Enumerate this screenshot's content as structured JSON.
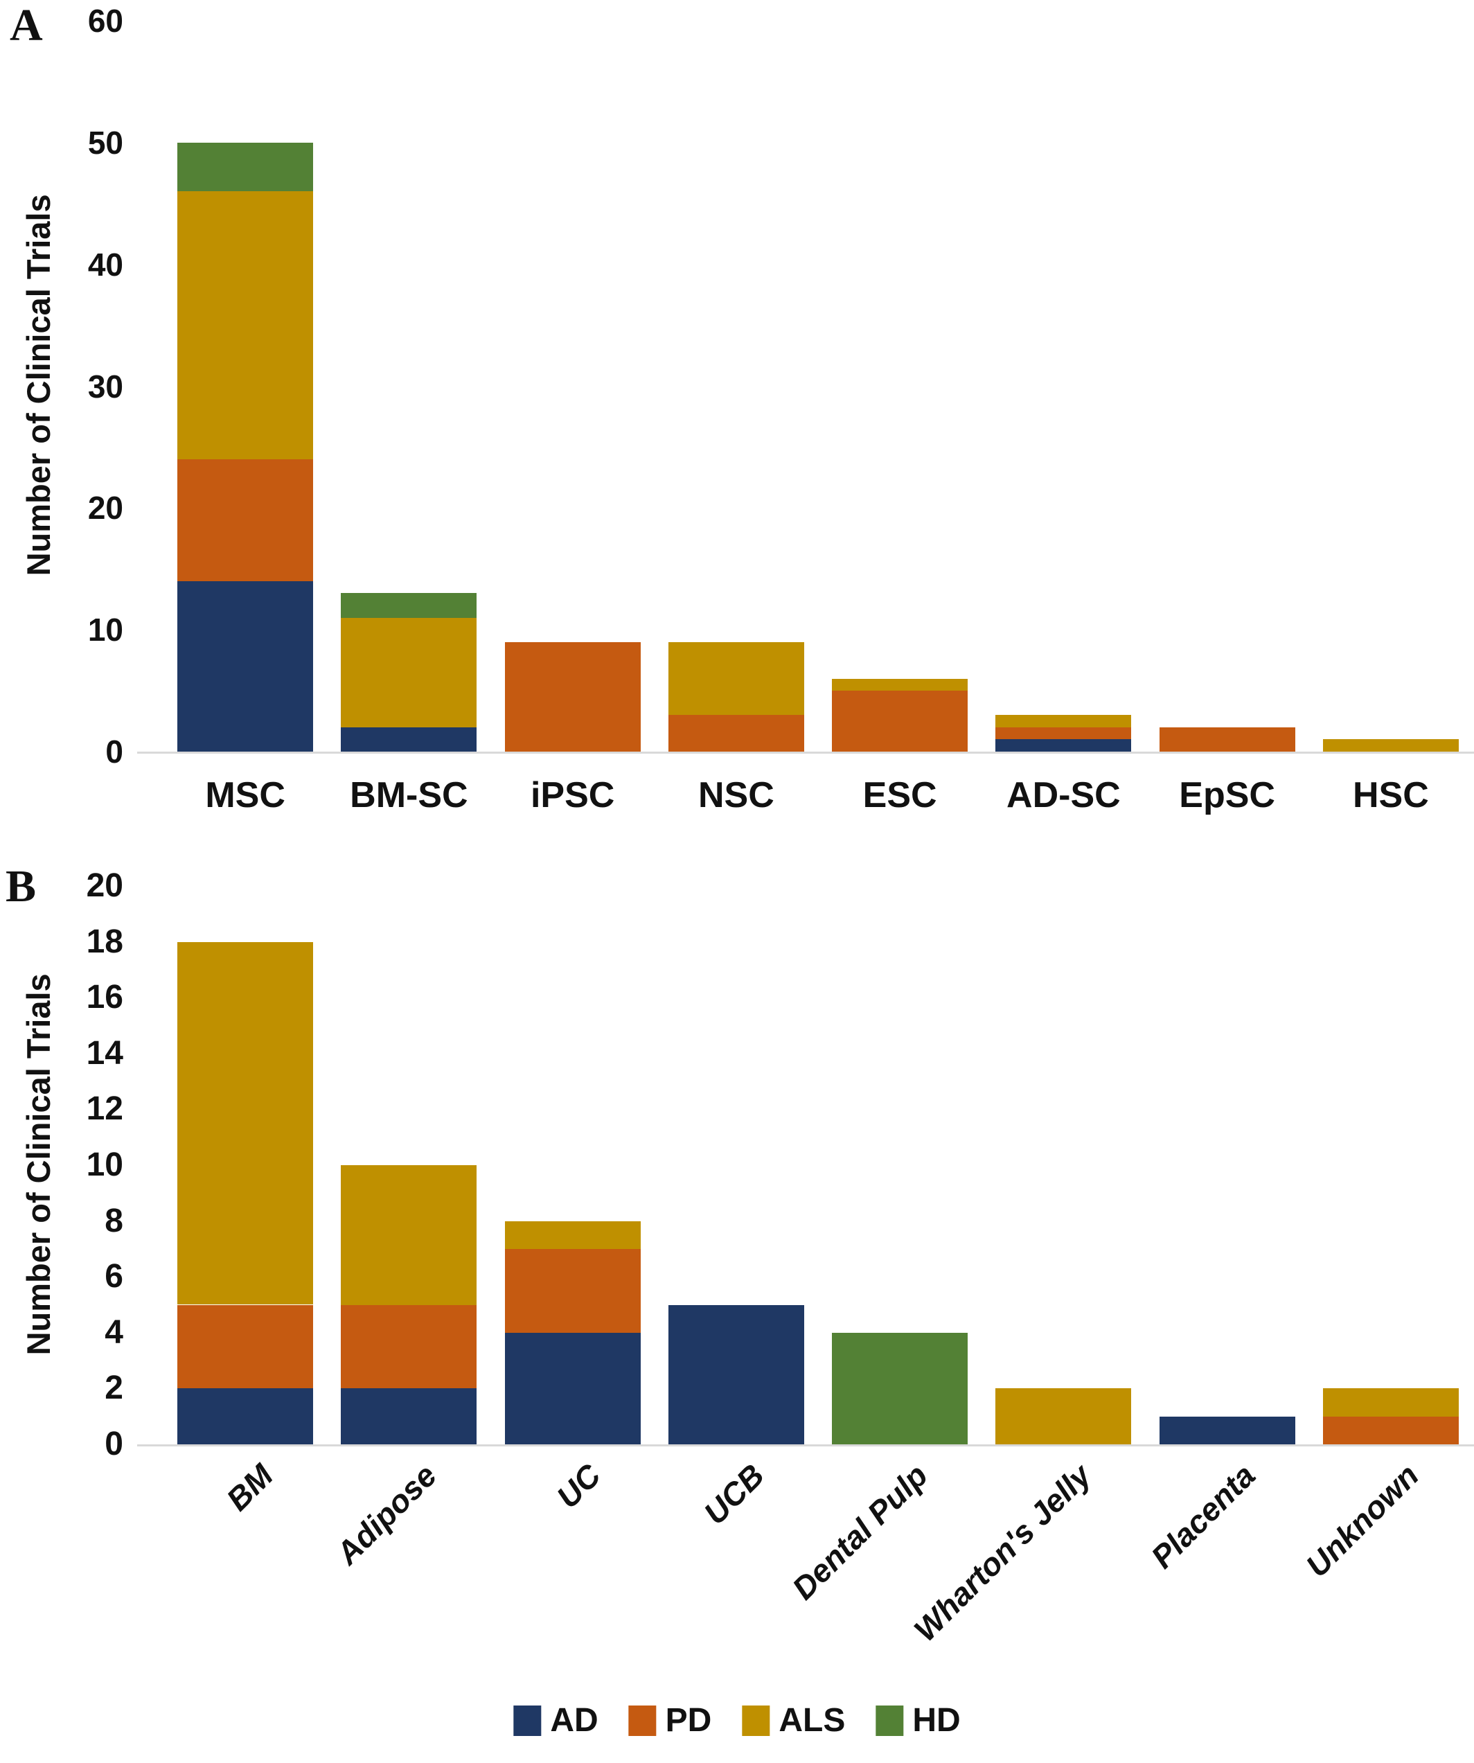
{
  "panels": [
    {
      "letter": "A"
    },
    {
      "letter": "B"
    }
  ],
  "legend": {
    "items": [
      {
        "label": "AD",
        "color": "#1F3864"
      },
      {
        "label": "PD",
        "color": "#C55A11"
      },
      {
        "label": "ALS",
        "color": "#BF9000"
      },
      {
        "label": "HD",
        "color": "#538135"
      }
    ],
    "position": "bottom-center"
  },
  "colors": {
    "AD": "#1F3864",
    "PD": "#C55A11",
    "ALS": "#BF9000",
    "HD": "#538135",
    "axis_line": "#D9D9D9",
    "text": "#111111",
    "background": "#FFFFFF"
  },
  "chart_data": [
    {
      "type": "bar",
      "stacked": true,
      "panel": "A",
      "title": "",
      "xlabel": "",
      "ylabel": "Number of Clinical Trials",
      "categories": [
        "MSC",
        "BM-SC",
        "iPSC",
        "NSC",
        "ESC",
        "AD-SC",
        "EpSC",
        "HSC"
      ],
      "series": [
        {
          "name": "AD",
          "color": "#1F3864",
          "values": [
            14,
            2,
            0,
            0,
            0,
            1,
            0,
            0
          ]
        },
        {
          "name": "PD",
          "color": "#C55A11",
          "values": [
            10,
            0,
            9,
            3,
            5,
            1,
            2,
            0
          ]
        },
        {
          "name": "ALS",
          "color": "#BF9000",
          "values": [
            22,
            9,
            0,
            6,
            1,
            1,
            0,
            1
          ]
        },
        {
          "name": "HD",
          "color": "#538135",
          "values": [
            4,
            2,
            0,
            0,
            0,
            0,
            0,
            0
          ]
        }
      ],
      "totals": [
        50,
        13,
        9,
        9,
        6,
        3,
        2,
        1
      ],
      "ylim": [
        0,
        60
      ],
      "ytick_step": 10,
      "grid": false,
      "legend_position": "shared-bottom"
    },
    {
      "type": "bar",
      "stacked": true,
      "panel": "B",
      "title": "",
      "xlabel": "",
      "ylabel": "Number of Clinical Trials",
      "categories": [
        "BM",
        "Adipose",
        "UC",
        "UCB",
        "Dental Pulp",
        "Wharton's Jelly",
        "Placenta",
        "Unknown"
      ],
      "series": [
        {
          "name": "AD",
          "color": "#1F3864",
          "values": [
            2,
            2,
            4,
            5,
            0,
            0,
            1,
            0
          ]
        },
        {
          "name": "PD",
          "color": "#C55A11",
          "values": [
            3,
            3,
            3,
            0,
            0,
            0,
            0,
            1
          ]
        },
        {
          "name": "ALS",
          "color": "#BF9000",
          "values": [
            13,
            5,
            1,
            0,
            0,
            2,
            0,
            1
          ]
        },
        {
          "name": "HD",
          "color": "#538135",
          "values": [
            0,
            0,
            0,
            0,
            4,
            0,
            0,
            0
          ]
        }
      ],
      "totals": [
        18,
        10,
        8,
        5,
        4,
        2,
        1,
        2
      ],
      "ylim": [
        0,
        20
      ],
      "ytick_step": 2,
      "grid": false,
      "legend_position": "shared-bottom"
    }
  ]
}
